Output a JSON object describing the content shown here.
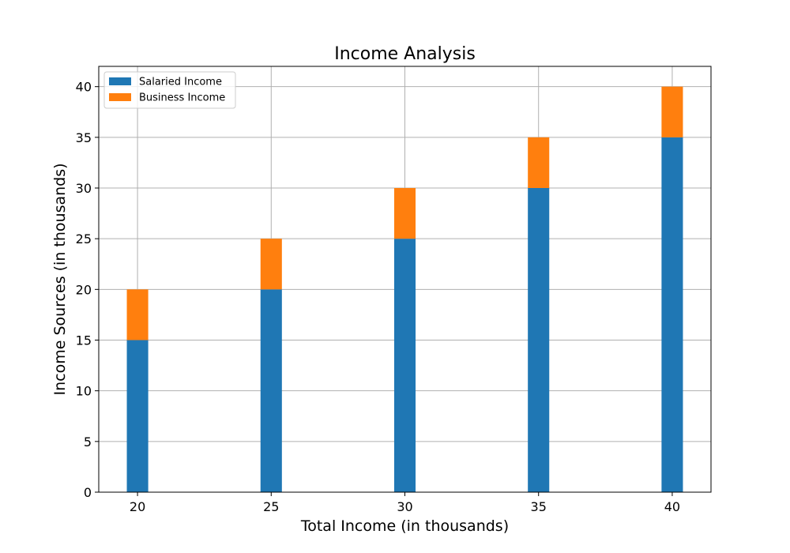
{
  "chart_data": {
    "type": "bar",
    "stacked": true,
    "title": "Income Analysis",
    "xlabel": "Total Income (in thousands)",
    "ylabel": "Income Sources (in thousands)",
    "x": [
      20,
      25,
      30,
      35,
      40
    ],
    "x_tick_labels": [
      "20",
      "25",
      "30",
      "35",
      "40"
    ],
    "y_ticks": [
      0,
      5,
      10,
      15,
      20,
      25,
      30,
      35,
      40
    ],
    "y_tick_labels": [
      "0",
      "5",
      "10",
      "15",
      "20",
      "25",
      "30",
      "35",
      "40"
    ],
    "xlim": [
      18.55,
      41.45
    ],
    "ylim": [
      0,
      42
    ],
    "bar_width": 0.8,
    "grid": true,
    "legend_position": "upper left",
    "series": [
      {
        "name": "Salaried Income",
        "values": [
          15,
          20,
          25,
          30,
          35
        ],
        "color": "#1f77b4"
      },
      {
        "name": "Business Income",
        "values": [
          5,
          5,
          5,
          5,
          5
        ],
        "color": "#ff7f0e"
      }
    ]
  }
}
